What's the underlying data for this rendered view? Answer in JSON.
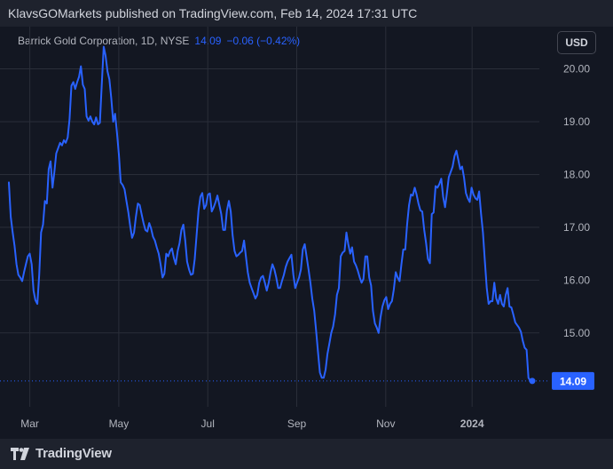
{
  "header": {
    "publish_line": "KlavsGOMarkets published on TradingView.com, Feb 14, 2024 17:31 UTC"
  },
  "legend": {
    "symbol": "Barrick Gold Corporation, 1D, NYSE",
    "last": "14.09",
    "change": "−0.06 (−0.42%)"
  },
  "currency_button": "USD",
  "footer": {
    "brand": "TradingView"
  },
  "colors": {
    "line": "#2962ff",
    "price_tag": "#2962ff",
    "background": "#131722",
    "grid": "#2a2e39",
    "axis_text": "#b2b5be"
  },
  "chart_data": {
    "type": "line",
    "series": [
      {
        "values": [
          17.85,
          17.2,
          16.9,
          16.65,
          16.3,
          16.1,
          16.05,
          15.98,
          16.15,
          16.3,
          16.45,
          16.5,
          16.3,
          15.8,
          15.62,
          15.55,
          16.1,
          16.9,
          17.05,
          17.5,
          17.45,
          18.1,
          18.25,
          17.75,
          18.05,
          18.4,
          18.5,
          18.6,
          18.55,
          18.65,
          18.6,
          18.7,
          19.05,
          19.68,
          19.75,
          19.62,
          19.75,
          19.85,
          20.05,
          19.7,
          19.62,
          19.1,
          19.02,
          19.1,
          19.0,
          18.95,
          19.08,
          18.95,
          18.98,
          19.7,
          20.42,
          20.25,
          19.95,
          19.8,
          19.45,
          19.0,
          19.15,
          18.8,
          18.38,
          17.85,
          17.8,
          17.72,
          17.5,
          17.28,
          17.02,
          16.8,
          16.9,
          17.2,
          17.45,
          17.42,
          17.25,
          17.08,
          16.95,
          16.92,
          17.08,
          16.98,
          16.82,
          16.75,
          16.62,
          16.5,
          16.3,
          16.05,
          16.12,
          16.5,
          16.45,
          16.55,
          16.6,
          16.42,
          16.3,
          16.55,
          16.7,
          16.95,
          17.05,
          16.75,
          16.35,
          16.2,
          16.1,
          16.12,
          16.4,
          16.85,
          17.32,
          17.58,
          17.65,
          17.35,
          17.42,
          17.62,
          17.64,
          17.3,
          17.38,
          17.48,
          17.6,
          17.42,
          17.25,
          16.95,
          16.95,
          17.32,
          17.5,
          17.3,
          16.85,
          16.55,
          16.45,
          16.48,
          16.52,
          16.55,
          16.75,
          16.45,
          16.15,
          15.95,
          15.85,
          15.75,
          15.65,
          15.72,
          15.95,
          16.05,
          16.08,
          15.95,
          15.8,
          15.95,
          16.15,
          16.3,
          16.2,
          16.05,
          15.85,
          15.85,
          15.98,
          16.1,
          16.25,
          16.35,
          16.42,
          16.48,
          16.1,
          15.85,
          15.95,
          16.05,
          16.2,
          16.58,
          16.68,
          16.45,
          16.2,
          15.95,
          15.65,
          15.42,
          15.05,
          14.65,
          14.25,
          14.15,
          14.15,
          14.3,
          14.6,
          14.8,
          15.0,
          15.12,
          15.35,
          15.72,
          15.85,
          16.45,
          16.52,
          16.55,
          16.9,
          16.68,
          16.5,
          16.62,
          16.35,
          16.28,
          16.18,
          16.05,
          15.95,
          16.02,
          16.45,
          16.45,
          16.05,
          15.9,
          15.42,
          15.18,
          15.1,
          15.0,
          15.3,
          15.5,
          15.62,
          15.68,
          15.45,
          15.55,
          15.6,
          15.82,
          16.15,
          16.05,
          15.98,
          16.3,
          16.58,
          16.58,
          17.05,
          17.42,
          17.62,
          17.6,
          17.75,
          17.62,
          17.45,
          17.32,
          17.3,
          16.95,
          16.7,
          16.4,
          16.32,
          17.25,
          17.28,
          17.78,
          17.75,
          17.82,
          17.92,
          17.58,
          17.38,
          17.65,
          17.95,
          18.05,
          18.15,
          18.35,
          18.45,
          18.28,
          18.1,
          18.15,
          17.95,
          17.65,
          17.55,
          17.48,
          17.75,
          17.62,
          17.55,
          17.52,
          17.68,
          17.25,
          16.9,
          16.35,
          15.85,
          15.55,
          15.6,
          15.6,
          15.95,
          15.65,
          15.55,
          15.72,
          15.55,
          15.5,
          15.72,
          15.85,
          15.5,
          15.48,
          15.35,
          15.2,
          15.15,
          15.1,
          15.02,
          14.85,
          14.72,
          14.68,
          14.15,
          14.09,
          14.09
        ]
      }
    ],
    "y_ticks": [
      "20.00",
      "19.00",
      "18.00",
      "17.00",
      "16.00",
      "15.00"
    ],
    "x_ticks": [
      "Mar",
      "May",
      "Jul",
      "Sep",
      "Nov",
      "2024"
    ],
    "ylim": [
      13.6,
      20.8
    ],
    "last_value": 14.09,
    "last_value_label": "14.09"
  }
}
